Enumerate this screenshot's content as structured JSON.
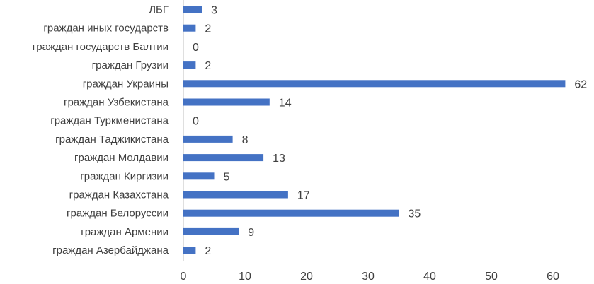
{
  "chart_data": {
    "type": "bar",
    "orientation": "horizontal",
    "categories": [
      "ЛБГ",
      "граждан иных государств",
      "граждан государств Балтии",
      "граждан Грузии",
      "граждан Украины",
      "граждан Узбекистана",
      "граждан Туркменистана",
      "граждан Таджикистана",
      "граждан Молдавии",
      "граждан Киргизии",
      "граждан Казахстана",
      "граждан Белоруссии",
      "граждан Армении",
      "граждан Азербайджана"
    ],
    "values": [
      3,
      2,
      0,
      2,
      62,
      14,
      0,
      8,
      13,
      5,
      17,
      35,
      9,
      2
    ],
    "xlim": [
      0,
      60
    ],
    "xticks": [
      0,
      10,
      20,
      30,
      40,
      50,
      60
    ],
    "title": "",
    "xlabel": "",
    "ylabel": "",
    "grid": false,
    "legend": "none",
    "bar_color": "#4472c4"
  }
}
